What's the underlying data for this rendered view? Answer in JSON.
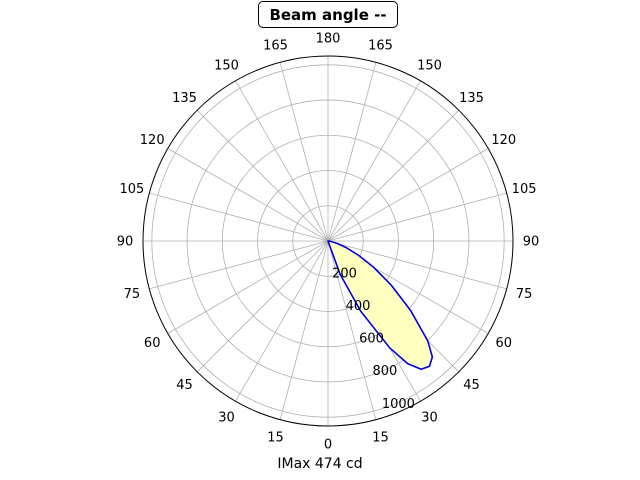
{
  "chart_data": {
    "type": "polar-line",
    "title": "Beam angle --",
    "xlabel": "IMax 474 cd",
    "angle_tick_labels": [
      "0",
      "15",
      "30",
      "45",
      "60",
      "75",
      "90",
      "105",
      "120",
      "135",
      "150",
      "165",
      "180",
      "165",
      "150",
      "135",
      "120",
      "105",
      "90",
      "75",
      "60",
      "45",
      "30",
      "15"
    ],
    "radial_tick_labels": [
      "200",
      "400",
      "600",
      "800",
      "1000"
    ],
    "radial_ticks": [
      200,
      400,
      600,
      800,
      1000
    ],
    "rlim": [
      0,
      1050
    ],
    "grid": true,
    "series": [
      {
        "color": "#0000dd",
        "fill": "#ffffc0",
        "points": [
          {
            "angle": 20,
            "value": 200
          },
          {
            "angle": 25,
            "value": 440
          },
          {
            "angle": 30,
            "value": 700
          },
          {
            "angle": 33,
            "value": 830
          },
          {
            "angle": 36,
            "value": 900
          },
          {
            "angle": 39,
            "value": 915
          },
          {
            "angle": 42,
            "value": 885
          },
          {
            "angle": 45,
            "value": 800
          },
          {
            "angle": 50,
            "value": 610
          },
          {
            "angle": 55,
            "value": 440
          },
          {
            "angle": 60,
            "value": 300
          },
          {
            "angle": 65,
            "value": 190
          },
          {
            "angle": 70,
            "value": 110
          },
          {
            "angle": 75,
            "value": 55
          },
          {
            "angle": 80,
            "value": 20
          },
          {
            "angle": 85,
            "value": 5
          },
          {
            "angle": 90,
            "value": 0
          }
        ]
      }
    ]
  }
}
